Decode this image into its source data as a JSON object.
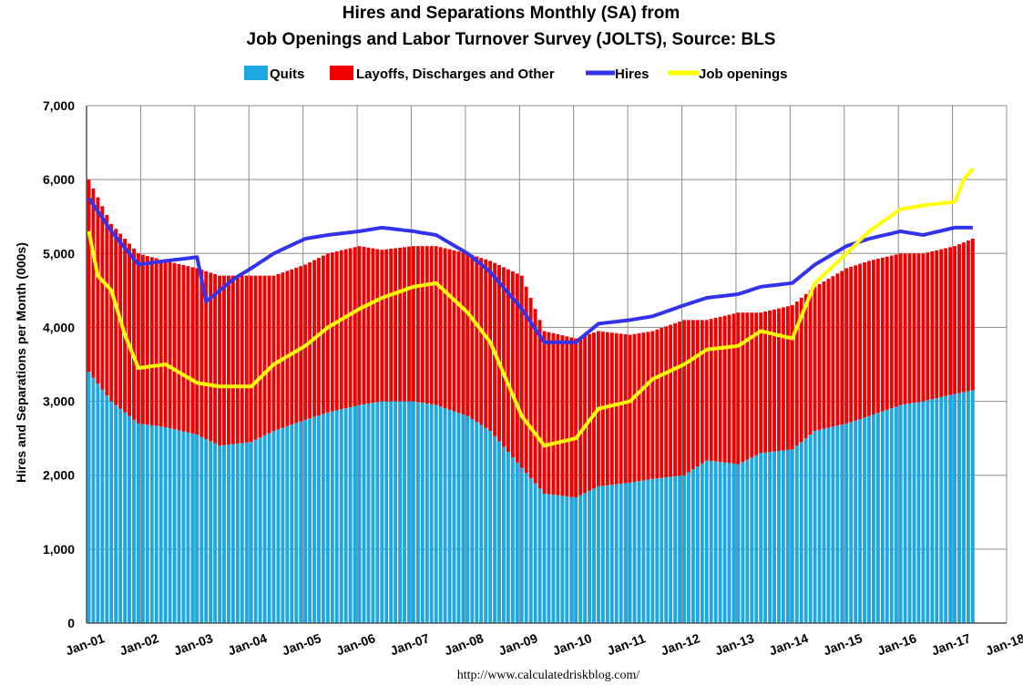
{
  "chart_data": {
    "type": "bar",
    "title_line1": "Hires and Separations Monthly (SA) from",
    "title_line2": "Job Openings and Labor Turnover Survey (JOLTS), Source: BLS",
    "ylabel": "Hires and Separations per Month (000s)",
    "xlabel": "",
    "ylim": [
      0,
      7000
    ],
    "y_ticks": [
      "0",
      "1,000",
      "2,000",
      "3,000",
      "4,000",
      "5,000",
      "6,000",
      "7,000"
    ],
    "x_ticks": [
      "Jan-01",
      "Jan-02",
      "Jan-03",
      "Jan-04",
      "Jan-05",
      "Jan-06",
      "Jan-07",
      "Jan-08",
      "Jan-09",
      "Jan-10",
      "Jan-11",
      "Jan-12",
      "Jan-13",
      "Jan-14",
      "Jan-15",
      "Jan-16",
      "Jan-17",
      "Jan-18"
    ],
    "grid": true,
    "legend_position": "top",
    "source_text": "http://www.calculatedriskblog.com/",
    "colors": {
      "quits": "#1EA7E1",
      "layoffs": "#F20000",
      "hires": "#3333EE",
      "openings": "#FFFF00"
    },
    "start_month": "2001-01",
    "series": [
      {
        "name": "Quits",
        "kind": "stacked-bar",
        "anchors": [
          [
            "2001-01",
            3400
          ],
          [
            "2001-06",
            3000
          ],
          [
            "2001-12",
            2700
          ],
          [
            "2002-06",
            2650
          ],
          [
            "2003-01",
            2550
          ],
          [
            "2003-06",
            2400
          ],
          [
            "2004-01",
            2450
          ],
          [
            "2004-06",
            2600
          ],
          [
            "2005-01",
            2750
          ],
          [
            "2005-06",
            2850
          ],
          [
            "2006-01",
            2950
          ],
          [
            "2006-06",
            3000
          ],
          [
            "2007-01",
            3000
          ],
          [
            "2007-06",
            2950
          ],
          [
            "2008-01",
            2800
          ],
          [
            "2008-06",
            2600
          ],
          [
            "2009-01",
            2100
          ],
          [
            "2009-06",
            1750
          ],
          [
            "2010-01",
            1700
          ],
          [
            "2010-06",
            1850
          ],
          [
            "2011-01",
            1900
          ],
          [
            "2011-06",
            1950
          ],
          [
            "2012-01",
            2000
          ],
          [
            "2012-06",
            2200
          ],
          [
            "2013-01",
            2150
          ],
          [
            "2013-06",
            2300
          ],
          [
            "2014-01",
            2350
          ],
          [
            "2014-06",
            2600
          ],
          [
            "2015-01",
            2700
          ],
          [
            "2015-06",
            2800
          ],
          [
            "2016-01",
            2950
          ],
          [
            "2016-06",
            3000
          ],
          [
            "2017-01",
            3100
          ],
          [
            "2017-05",
            3150
          ]
        ]
      },
      {
        "name": "Layoffs, Discharges and Other",
        "kind": "stacked-bar",
        "anchors": [
          [
            "2001-01",
            2600
          ],
          [
            "2001-06",
            2400
          ],
          [
            "2001-12",
            2300
          ],
          [
            "2002-06",
            2250
          ],
          [
            "2003-01",
            2250
          ],
          [
            "2003-06",
            2300
          ],
          [
            "2004-01",
            2250
          ],
          [
            "2004-06",
            2100
          ],
          [
            "2005-01",
            2100
          ],
          [
            "2005-06",
            2150
          ],
          [
            "2006-01",
            2150
          ],
          [
            "2006-06",
            2050
          ],
          [
            "2007-01",
            2100
          ],
          [
            "2007-06",
            2150
          ],
          [
            "2008-01",
            2200
          ],
          [
            "2008-06",
            2300
          ],
          [
            "2009-01",
            2600
          ],
          [
            "2009-06",
            2200
          ],
          [
            "2010-01",
            2150
          ],
          [
            "2010-06",
            2100
          ],
          [
            "2011-01",
            2000
          ],
          [
            "2011-06",
            2000
          ],
          [
            "2012-01",
            2100
          ],
          [
            "2012-06",
            1900
          ],
          [
            "2013-01",
            2050
          ],
          [
            "2013-06",
            1900
          ],
          [
            "2014-01",
            1950
          ],
          [
            "2014-06",
            1950
          ],
          [
            "2015-01",
            2100
          ],
          [
            "2015-06",
            2100
          ],
          [
            "2016-01",
            2050
          ],
          [
            "2016-06",
            2000
          ],
          [
            "2017-01",
            2000
          ],
          [
            "2017-05",
            2050
          ]
        ]
      },
      {
        "name": "Hires",
        "kind": "line",
        "anchors": [
          [
            "2001-01",
            5750
          ],
          [
            "2001-06",
            5300
          ],
          [
            "2001-12",
            4850
          ],
          [
            "2002-06",
            4900
          ],
          [
            "2003-01",
            4950
          ],
          [
            "2003-03",
            4350
          ],
          [
            "2003-09",
            4650
          ],
          [
            "2004-01",
            4800
          ],
          [
            "2004-06",
            5000
          ],
          [
            "2005-01",
            5200
          ],
          [
            "2005-06",
            5250
          ],
          [
            "2006-01",
            5300
          ],
          [
            "2006-06",
            5350
          ],
          [
            "2007-01",
            5300
          ],
          [
            "2007-06",
            5250
          ],
          [
            "2008-01",
            5000
          ],
          [
            "2008-06",
            4750
          ],
          [
            "2009-01",
            4250
          ],
          [
            "2009-06",
            3800
          ],
          [
            "2010-01",
            3800
          ],
          [
            "2010-06",
            4050
          ],
          [
            "2011-01",
            4100
          ],
          [
            "2011-06",
            4150
          ],
          [
            "2012-01",
            4300
          ],
          [
            "2012-06",
            4400
          ],
          [
            "2013-01",
            4450
          ],
          [
            "2013-06",
            4550
          ],
          [
            "2014-01",
            4600
          ],
          [
            "2014-06",
            4850
          ],
          [
            "2015-01",
            5100
          ],
          [
            "2015-06",
            5200
          ],
          [
            "2016-01",
            5300
          ],
          [
            "2016-06",
            5250
          ],
          [
            "2017-01",
            5350
          ],
          [
            "2017-05",
            5350
          ]
        ]
      },
      {
        "name": "Job openings",
        "kind": "line",
        "anchors": [
          [
            "2001-01",
            5300
          ],
          [
            "2001-03",
            4700
          ],
          [
            "2001-06",
            4500
          ],
          [
            "2001-09",
            3900
          ],
          [
            "2001-12",
            3450
          ],
          [
            "2002-06",
            3500
          ],
          [
            "2003-01",
            3250
          ],
          [
            "2003-06",
            3200
          ],
          [
            "2004-01",
            3200
          ],
          [
            "2004-06",
            3500
          ],
          [
            "2005-01",
            3750
          ],
          [
            "2005-06",
            4000
          ],
          [
            "2006-01",
            4250
          ],
          [
            "2006-06",
            4400
          ],
          [
            "2007-01",
            4550
          ],
          [
            "2007-06",
            4600
          ],
          [
            "2008-01",
            4200
          ],
          [
            "2008-06",
            3800
          ],
          [
            "2009-01",
            2800
          ],
          [
            "2009-06",
            2400
          ],
          [
            "2010-01",
            2500
          ],
          [
            "2010-06",
            2900
          ],
          [
            "2011-01",
            3000
          ],
          [
            "2011-06",
            3300
          ],
          [
            "2012-01",
            3500
          ],
          [
            "2012-06",
            3700
          ],
          [
            "2013-01",
            3750
          ],
          [
            "2013-06",
            3950
          ],
          [
            "2014-01",
            3850
          ],
          [
            "2014-06",
            4600
          ],
          [
            "2015-01",
            5000
          ],
          [
            "2015-06",
            5300
          ],
          [
            "2016-01",
            5600
          ],
          [
            "2016-06",
            5650
          ],
          [
            "2017-01",
            5700
          ],
          [
            "2017-03",
            6000
          ],
          [
            "2017-05",
            6150
          ]
        ]
      }
    ]
  }
}
